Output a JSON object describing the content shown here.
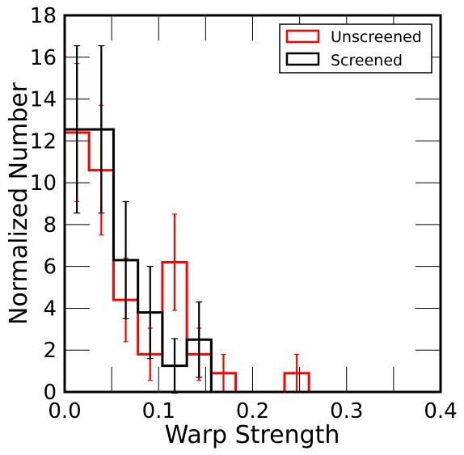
{
  "chart_data": {
    "type": "histogram",
    "xlabel": "Warp Strength",
    "ylabel": "Normalized Number",
    "xlim": [
      0.0,
      0.4
    ],
    "ylim": [
      0,
      18
    ],
    "xticks": [
      0.0,
      0.1,
      0.2,
      0.3,
      0.4
    ],
    "xtick_labels": [
      "0.0",
      "0.1",
      "0.2",
      "0.3",
      "0.4"
    ],
    "yticks": [
      0,
      2,
      4,
      6,
      8,
      10,
      12,
      14,
      16,
      18
    ],
    "ytick_labels": [
      "0",
      "2",
      "4",
      "6",
      "8",
      "10",
      "12",
      "14",
      "16",
      "18"
    ],
    "grid": false,
    "legend_position": "top-right",
    "series": [
      {
        "name": "Unscreened",
        "color": "#ff0000",
        "bin_edges": [
          0.0,
          0.026,
          0.052,
          0.078,
          0.104,
          0.13,
          0.156,
          0.182,
          0.208,
          0.234,
          0.26
        ],
        "values": [
          12.4,
          10.6,
          4.4,
          1.8,
          6.2,
          1.8,
          0.9,
          0.0,
          0.0,
          0.9
        ],
        "errors": [
          3.3,
          3.1,
          2.0,
          1.25,
          2.3,
          1.25,
          0.9,
          0.0,
          0.0,
          0.9
        ]
      },
      {
        "name": "Screened",
        "color": "#000000",
        "bin_edges": [
          0.0,
          0.026,
          0.052,
          0.078,
          0.104,
          0.13,
          0.156
        ],
        "values": [
          12.55,
          12.55,
          6.3,
          3.8,
          1.25,
          2.5
        ],
        "errors": [
          4.0,
          4.0,
          2.8,
          2.2,
          1.3,
          1.8
        ]
      }
    ]
  }
}
